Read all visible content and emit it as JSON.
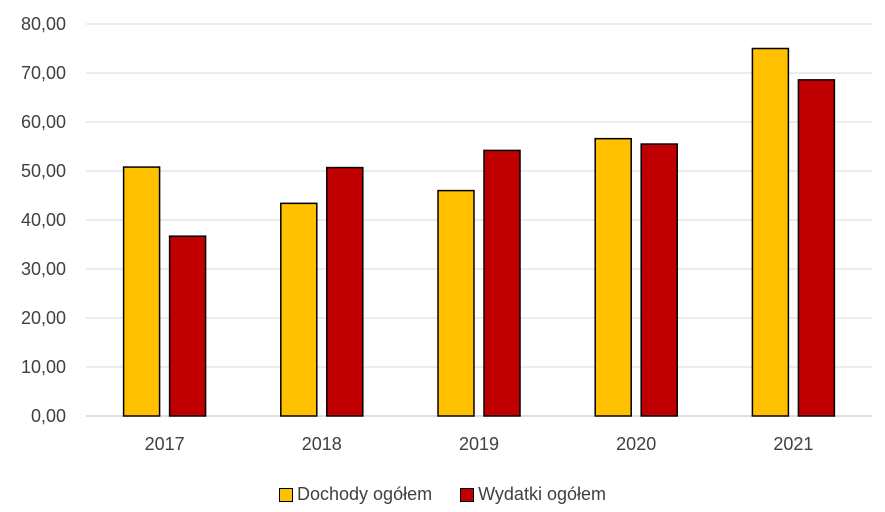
{
  "chart_data": {
    "type": "bar",
    "categories": [
      "2017",
      "2018",
      "2019",
      "2020",
      "2021"
    ],
    "series": [
      {
        "name": "Dochody ogółem",
        "values": [
          50.8,
          43.4,
          46.0,
          56.6,
          75.0
        ],
        "color": "#FFC000"
      },
      {
        "name": "Wydatki ogółem",
        "values": [
          36.7,
          50.7,
          54.2,
          55.5,
          68.6
        ],
        "color": "#C00000"
      }
    ],
    "y_ticks": [
      "0,00",
      "10,00",
      "20,00",
      "30,00",
      "40,00",
      "50,00",
      "60,00",
      "70,00",
      "80,00"
    ],
    "ylim": [
      0,
      80
    ],
    "grid": true,
    "legend_position": "bottom"
  }
}
